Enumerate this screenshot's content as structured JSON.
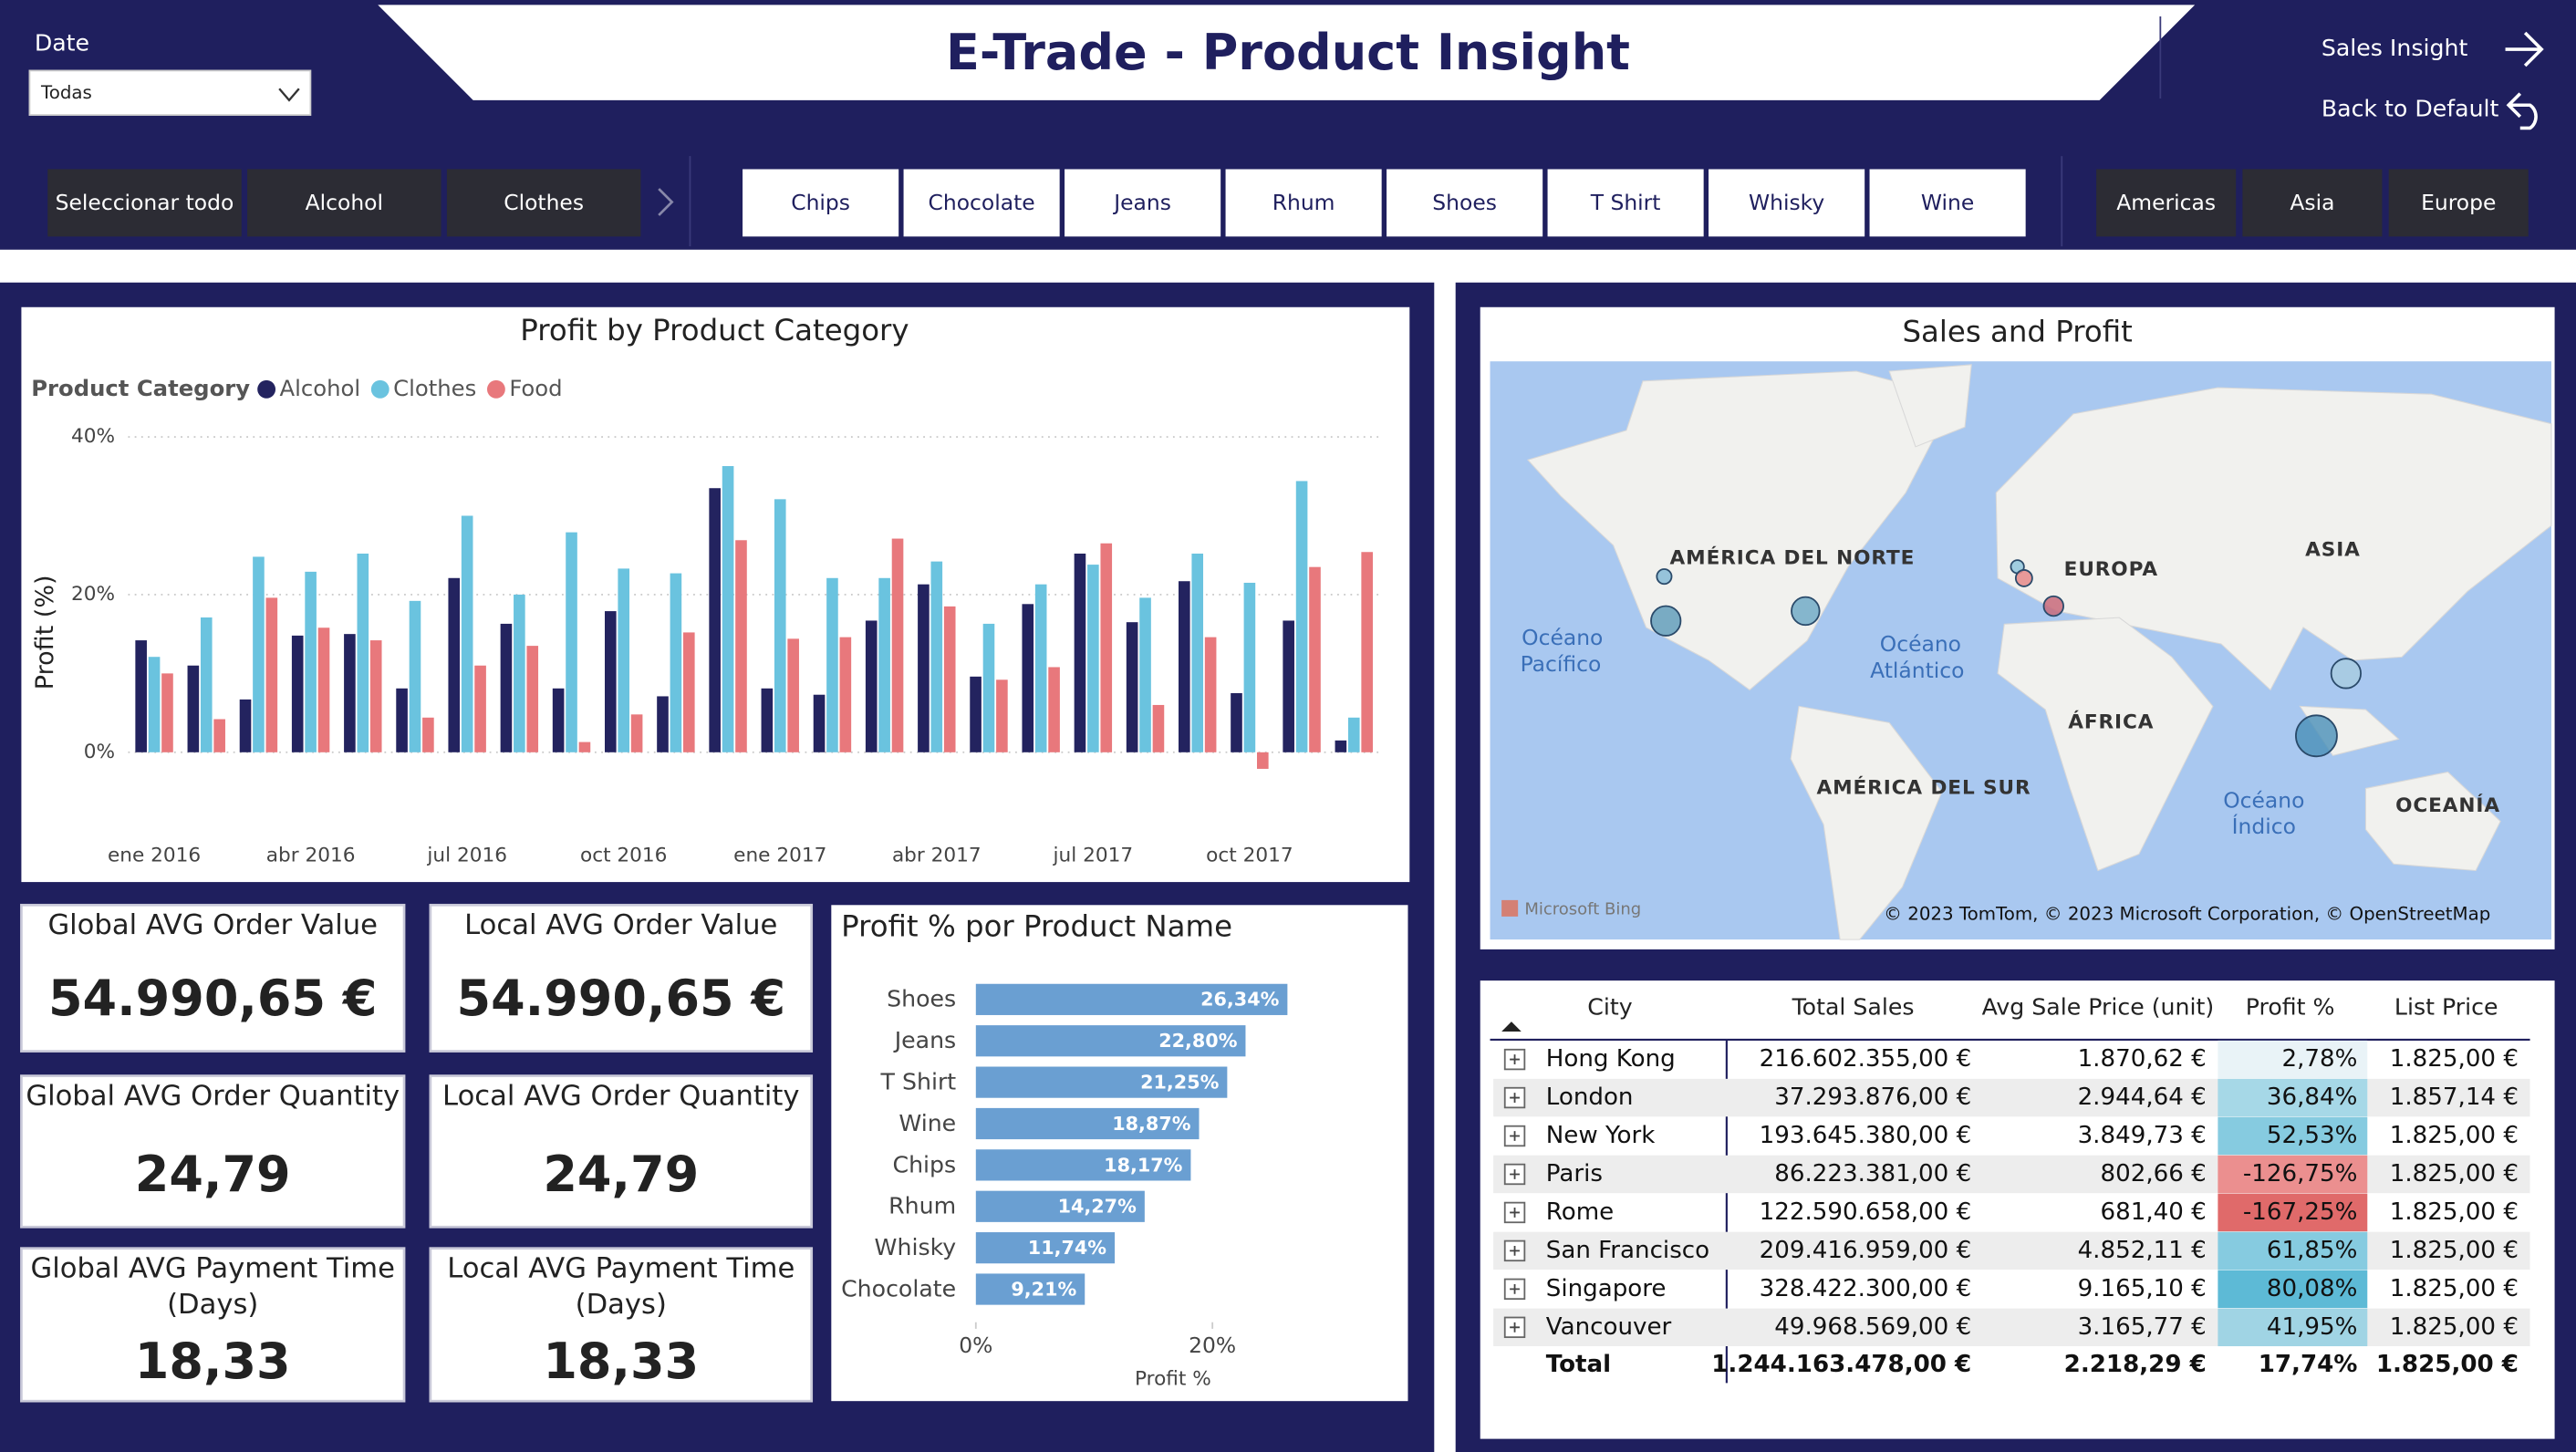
{
  "header": {
    "title": "E-Trade - Product Insight",
    "date_label": "Date",
    "date_value": "Todas",
    "nav": [
      "Sales Insight",
      "Back to Default"
    ]
  },
  "slicers": {
    "category": [
      "Seleccionar todo",
      "Alcohol",
      "Clothes"
    ],
    "product": [
      "Chips",
      "Chocolate",
      "Jeans",
      "Rhum",
      "Shoes",
      "T Shirt",
      "Whisky",
      "Wine"
    ],
    "region": [
      "Americas",
      "Asia",
      "Europe"
    ]
  },
  "chart_data": [
    {
      "type": "bar",
      "title": "Profit by Product Category",
      "legend_title": "Product Category",
      "ylabel": "Profit (%)",
      "categories": [
        "ene 2016",
        null,
        null,
        "abr 2016",
        null,
        null,
        "jul 2016",
        null,
        null,
        "oct 2016",
        null,
        null,
        "ene 2017",
        null,
        null,
        "abr 2017",
        null,
        null,
        "jul 2017",
        null,
        null,
        "oct 2017",
        null,
        null
      ],
      "series": [
        {
          "name": "Alcohol",
          "color": "#23235f",
          "values": [
            14.2,
            11.0,
            6.7,
            14.8,
            15.0,
            8.1,
            22.1,
            16.3,
            8.1,
            17.9,
            7.1,
            33.5,
            8.1,
            7.3,
            16.7,
            21.3,
            9.6,
            18.8,
            25.2,
            16.5,
            21.7,
            7.5,
            16.7,
            1.5
          ]
        },
        {
          "name": "Clothes",
          "color": "#6ac3df",
          "values": [
            12.1,
            17.1,
            24.8,
            22.9,
            25.2,
            19.2,
            30.0,
            20.0,
            27.9,
            23.3,
            22.7,
            36.3,
            32.1,
            22.1,
            22.1,
            24.2,
            16.3,
            21.3,
            23.8,
            19.6,
            25.2,
            21.5,
            34.4,
            4.4
          ]
        },
        {
          "name": "Food",
          "color": "#e8787c",
          "values": [
            10.0,
            4.2,
            19.6,
            15.8,
            14.2,
            4.4,
            11.0,
            13.5,
            1.3,
            4.8,
            15.2,
            26.9,
            14.4,
            14.6,
            27.1,
            18.5,
            9.2,
            10.8,
            26.5,
            6.0,
            14.6,
            -2.1,
            23.5,
            25.4
          ]
        }
      ],
      "ylim": [
        -5,
        40
      ],
      "yticks": [
        {
          "value": 0,
          "label": "0%"
        },
        {
          "value": 20,
          "label": "20%"
        },
        {
          "value": 40,
          "label": "40%"
        }
      ],
      "grid": true
    },
    {
      "type": "barh",
      "title": "Profit % por Product Name",
      "xlabel": "Profit %",
      "categories": [
        "Shoes",
        "Jeans",
        "T Shirt",
        "Wine",
        "Chips",
        "Rhum",
        "Whisky",
        "Chocolate"
      ],
      "values": [
        26.34,
        22.8,
        21.25,
        18.87,
        18.17,
        14.27,
        11.74,
        9.21
      ],
      "value_labels": [
        "26,34%",
        "22,80%",
        "21,25%",
        "18,87%",
        "18,17%",
        "14,27%",
        "11,74%",
        "9,21%"
      ],
      "color": "#6a9fd2",
      "xlim": [
        0,
        30
      ],
      "xticks": [
        {
          "value": 0,
          "label": "0%"
        },
        {
          "value": 20,
          "label": "20%"
        }
      ]
    }
  ],
  "kpis": [
    {
      "title": [
        "Global AVG Order Value"
      ],
      "value": "54.990,65 €"
    },
    {
      "title": [
        "Local AVG Order Value"
      ],
      "value": "54.990,65 €"
    },
    {
      "title": [
        "Global AVG Order Quantity"
      ],
      "value": "24,79"
    },
    {
      "title": [
        "Local AVG Order Quantity"
      ],
      "value": "24,79"
    },
    {
      "title": [
        "Global AVG Payment Time",
        "(Days)"
      ],
      "value": "18,33"
    },
    {
      "title": [
        "Local AVG Payment Time",
        "(Days)"
      ],
      "value": "18,33"
    }
  ],
  "map": {
    "title": "Sales and Profit",
    "labels": [
      "AMÉRICA DEL NORTE",
      "EUROPA",
      "ASIA",
      "ÁFRICA",
      "AMÉRICA DEL SUR",
      "OCEANÍA",
      "Océano",
      "Pacífico",
      "Océano",
      "Atlántico",
      "Océano",
      "Índico"
    ],
    "logo": "Microsoft Bing",
    "attribution": "© 2023 TomTom, © 2023 Microsoft Corporation, © OpenStreetMap"
  },
  "table": {
    "columns": [
      "City",
      "Total Sales",
      "Avg Sale Price (unit)",
      "Profit %",
      "List Price"
    ],
    "rows": [
      [
        "Hong Kong",
        "216.602.355,00 €",
        "1.870,62 €",
        "2,78%",
        "1.825,00 €"
      ],
      [
        "London",
        "37.293.876,00 €",
        "2.944,64 €",
        "36,84%",
        "1.857,14 €"
      ],
      [
        "New York",
        "193.645.380,00 €",
        "3.849,73 €",
        "52,53%",
        "1.825,00 €"
      ],
      [
        "Paris",
        "86.223.381,00 €",
        "802,66 €",
        "-126,75%",
        "1.825,00 €"
      ],
      [
        "Rome",
        "122.590.658,00 €",
        "681,40 €",
        "-167,25%",
        "1.825,00 €"
      ],
      [
        "San Francisco",
        "209.416.959,00 €",
        "4.852,11 €",
        "61,85%",
        "1.825,00 €"
      ],
      [
        "Singapore",
        "328.422.300,00 €",
        "9.165,10 €",
        "80,08%",
        "1.825,00 €"
      ],
      [
        "Vancouver",
        "49.968.569,00 €",
        "3.165,77 €",
        "41,95%",
        "1.825,00 €"
      ]
    ],
    "total": [
      "Total",
      "1.244.163.478,00 €",
      "2.218,29 €",
      "17,74%",
      "1.825,00 €"
    ],
    "profit_colors": [
      "#e9f3f7",
      "#a6d8e7",
      "#86cbe0",
      "#eb8f8f",
      "#e06a6a",
      "#86cbe0",
      "#5dbad6",
      "#a0d4e4"
    ]
  }
}
